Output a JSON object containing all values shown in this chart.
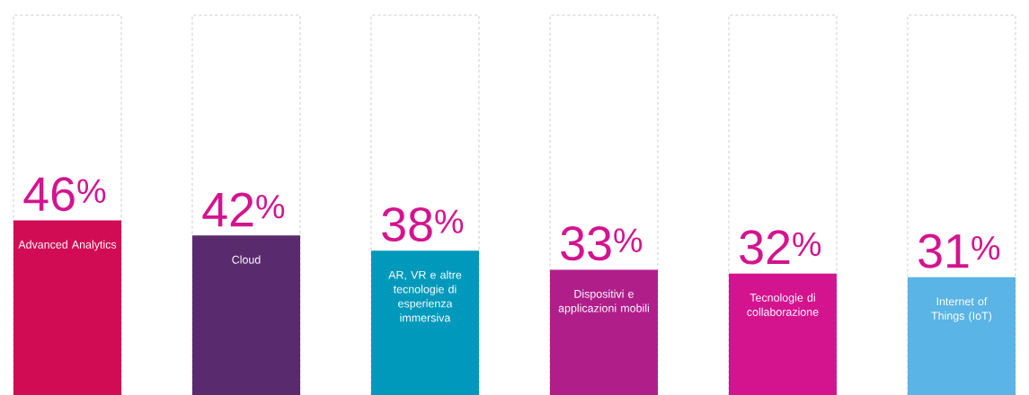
{
  "chart_data": {
    "type": "bar",
    "categories": [
      "Advanced Analytics",
      "Cloud",
      "AR, VR e altre tecnologie di esperienza immersiva",
      "Dispositivi e applicazioni mobili",
      "Tecnologie di collaborazione",
      "Internet of Things (IoT)"
    ],
    "values": [
      46,
      42,
      38,
      33,
      32,
      31
    ],
    "value_labels": [
      "46$^{%}$",
      "42$^{%}$",
      "38$^{%}$",
      "33$^{%}$",
      "32$^{%}$",
      "31$^{%}$"
    ],
    "colors": [
      "#d10c55",
      "#5a2a6e",
      "#0099bb",
      "#b01e8a",
      "#d4148f",
      "#5ab4e5"
    ],
    "ylim": [
      0,
      100
    ],
    "tick_labels": false
  }
}
